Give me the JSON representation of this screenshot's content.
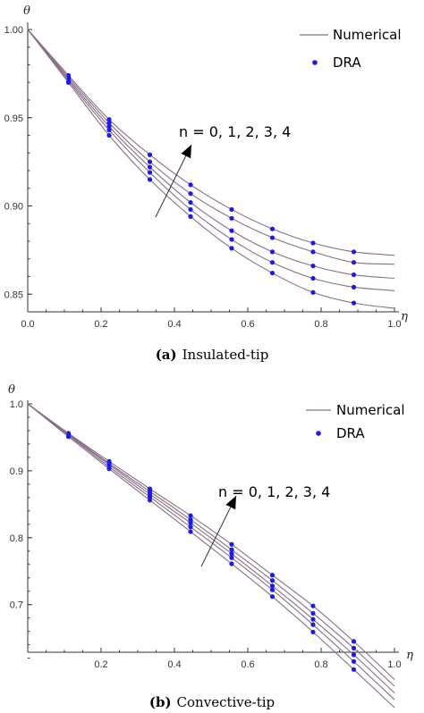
{
  "colors": {
    "curve": "#8a6e87",
    "dots": "#1a1aee",
    "axis": "#333333"
  },
  "legend": {
    "line_label": "Numerical",
    "marker_label": "DRA"
  },
  "annotation": "n = 0, 1, 2, 3, 4",
  "chart_data": [
    {
      "type": "line",
      "ylabel": "θ",
      "xlabel": "η",
      "xlim": [
        0,
        1
      ],
      "ylim": [
        0.84,
        1.0
      ],
      "xticks": [
        0.0,
        0.2,
        0.4,
        0.6,
        0.8,
        1.0
      ],
      "xtick_labels": [
        "0.0",
        "0.2",
        "0.4",
        "0.6",
        "0.8",
        "1.0"
      ],
      "yticks": [
        0.85,
        0.9,
        0.95,
        1.0
      ],
      "ytick_labels": [
        "0.85",
        "0.90",
        "0.95",
        "1.00"
      ],
      "caption_label": "(a)",
      "caption_text": "Insulated-tip",
      "series": [
        {
          "x": [
            0,
            0.111,
            0.222,
            0.333,
            0.444,
            0.556,
            0.667,
            0.778,
            0.889,
            1.0
          ],
          "values": [
            1.0,
            0.974,
            0.949,
            0.929,
            0.912,
            0.898,
            0.887,
            0.879,
            0.874,
            0.872
          ]
        },
        {
          "x": [
            0,
            0.111,
            0.222,
            0.333,
            0.444,
            0.556,
            0.667,
            0.778,
            0.889,
            1.0
          ],
          "values": [
            1.0,
            0.973,
            0.947,
            0.925,
            0.907,
            0.893,
            0.882,
            0.874,
            0.868,
            0.867
          ]
        },
        {
          "x": [
            0,
            0.111,
            0.222,
            0.333,
            0.444,
            0.556,
            0.667,
            0.778,
            0.889,
            1.0
          ],
          "values": [
            1.0,
            0.972,
            0.945,
            0.922,
            0.902,
            0.886,
            0.874,
            0.866,
            0.861,
            0.859
          ]
        },
        {
          "x": [
            0,
            0.111,
            0.222,
            0.333,
            0.444,
            0.556,
            0.667,
            0.778,
            0.889,
            1.0
          ],
          "values": [
            1.0,
            0.971,
            0.943,
            0.919,
            0.898,
            0.881,
            0.868,
            0.859,
            0.854,
            0.852
          ]
        },
        {
          "x": [
            0,
            0.111,
            0.222,
            0.333,
            0.444,
            0.556,
            0.667,
            0.778,
            0.889,
            1.0
          ],
          "values": [
            1.0,
            0.97,
            0.94,
            0.915,
            0.894,
            0.876,
            0.862,
            0.851,
            0.845,
            0.842
          ]
        }
      ]
    },
    {
      "type": "line",
      "ylabel": "θ",
      "xlabel": "η",
      "xlim": [
        0,
        1
      ],
      "ylim": [
        0.62,
        1.0
      ],
      "xticks": [
        0.2,
        0.4,
        0.6,
        0.8,
        1.0
      ],
      "xtick_labels": [
        "0.2",
        "0.4",
        "0.6",
        "0.8",
        "1.0"
      ],
      "yticks": [
        0.7,
        0.8,
        0.9,
        1.0
      ],
      "ytick_labels": [
        "0.7",
        "0.8",
        "0.9",
        "1.0"
      ],
      "caption_label": "(b)",
      "caption_text": "Convective-tip",
      "series": [
        {
          "x": [
            0,
            0.111,
            0.222,
            0.333,
            0.444,
            0.556,
            0.667,
            0.778,
            0.889,
            1.0
          ],
          "values": [
            1.0,
            0.956,
            0.914,
            0.873,
            0.833,
            0.79,
            0.744,
            0.698,
            0.645,
            0.588
          ]
        },
        {
          "x": [
            0,
            0.111,
            0.222,
            0.333,
            0.444,
            0.556,
            0.667,
            0.778,
            0.889,
            1.0
          ],
          "values": [
            1.0,
            0.955,
            0.911,
            0.869,
            0.827,
            0.782,
            0.736,
            0.687,
            0.635,
            0.578
          ]
        },
        {
          "x": [
            0,
            0.111,
            0.222,
            0.333,
            0.444,
            0.556,
            0.667,
            0.778,
            0.889,
            1.0
          ],
          "values": [
            1.0,
            0.954,
            0.909,
            0.865,
            0.822,
            0.776,
            0.728,
            0.678,
            0.625,
            0.568
          ]
        },
        {
          "x": [
            0,
            0.111,
            0.222,
            0.333,
            0.444,
            0.556,
            0.667,
            0.778,
            0.889,
            1.0
          ],
          "values": [
            1.0,
            0.953,
            0.906,
            0.861,
            0.816,
            0.77,
            0.722,
            0.67,
            0.615,
            0.558
          ]
        },
        {
          "x": [
            0,
            0.111,
            0.222,
            0.333,
            0.444,
            0.556,
            0.667,
            0.778,
            0.889,
            1.0
          ],
          "values": [
            1.0,
            0.951,
            0.903,
            0.856,
            0.809,
            0.761,
            0.712,
            0.659,
            0.603,
            0.546
          ]
        }
      ]
    }
  ]
}
